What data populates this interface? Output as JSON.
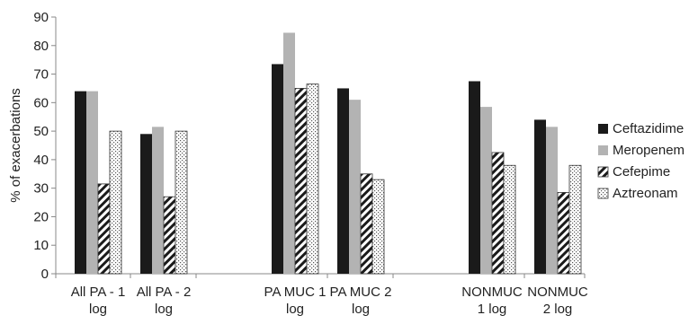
{
  "chart_data": {
    "type": "bar",
    "title": "",
    "xlabel": "",
    "ylabel": "% of exacerbations",
    "ylim": [
      0,
      90
    ],
    "yticks": [
      0,
      10,
      20,
      30,
      40,
      50,
      60,
      70,
      80,
      90
    ],
    "grid": false,
    "legend_position": "right",
    "categories": [
      [
        "All PA - 1",
        "log"
      ],
      [
        "All PA - 2",
        "log"
      ],
      [
        "PA MUC 1",
        "log"
      ],
      [
        "PA MUC 2",
        "log"
      ],
      [
        "NONMUC",
        "1 log"
      ],
      [
        "NONMUC",
        "2 log"
      ]
    ],
    "series": [
      {
        "name": "Ceftazidime",
        "pattern": "solid-black",
        "color": "#1a1a1a",
        "values": [
          64,
          49,
          73.5,
          65,
          67.5,
          54
        ]
      },
      {
        "name": "Meropenem",
        "pattern": "solid-gray",
        "color": "#b3b3b3",
        "values": [
          64,
          51.5,
          84.5,
          61,
          58.5,
          51.5
        ]
      },
      {
        "name": "Cefepime",
        "pattern": "diagonal-hatch",
        "color": "#1a1a1a",
        "values": [
          31.5,
          27,
          65,
          35,
          42.5,
          28.5
        ]
      },
      {
        "name": "Aztreonam",
        "pattern": "dotted",
        "color": "#555555",
        "values": [
          50,
          50,
          66.5,
          33,
          38,
          38
        ]
      }
    ]
  }
}
